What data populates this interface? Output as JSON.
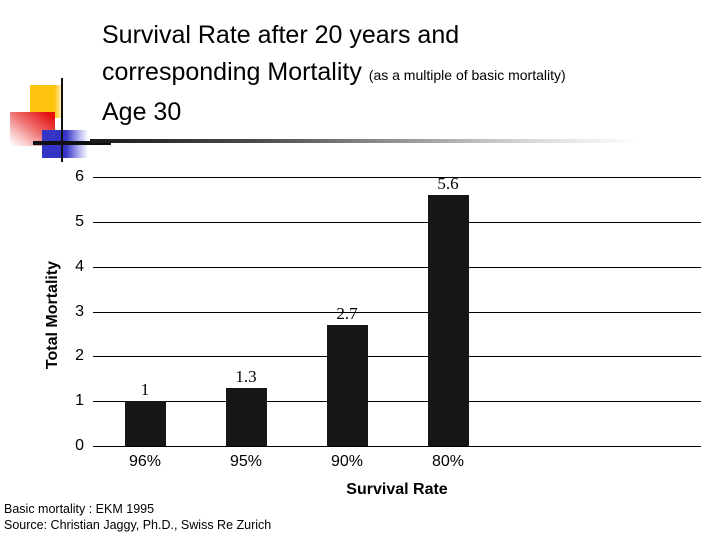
{
  "slide": {
    "title_line1": "Survival Rate after 20 years and",
    "title_line2_main": "corresponding Mortality",
    "title_line2_note": "(as a multiple of basic mortality)",
    "title_line3": "Age 30",
    "footer_line1": "Basic mortality : EKM 1995",
    "footer_line2": "Source: Christian Jaggy, Ph.D., Swiss Re Zurich"
  },
  "chart_data": {
    "type": "bar",
    "categories": [
      "96%",
      "95%",
      "90%",
      "80%"
    ],
    "values": [
      1,
      1.3,
      2.7,
      5.6
    ],
    "value_labels": [
      "1",
      "1.3",
      "2.7",
      "5.6"
    ],
    "xlabel": "Survival Rate",
    "ylabel": "Total Mortality",
    "ylim": [
      0,
      6
    ],
    "yticks": [
      0,
      1,
      2,
      3,
      4,
      5,
      6
    ],
    "grid": true,
    "legend": "none",
    "bar_color": "#161616",
    "gridline_color": "#000000"
  },
  "decor": {
    "yellow": "#ffc40f",
    "red": "#e41111",
    "blue": "#3434c6"
  }
}
